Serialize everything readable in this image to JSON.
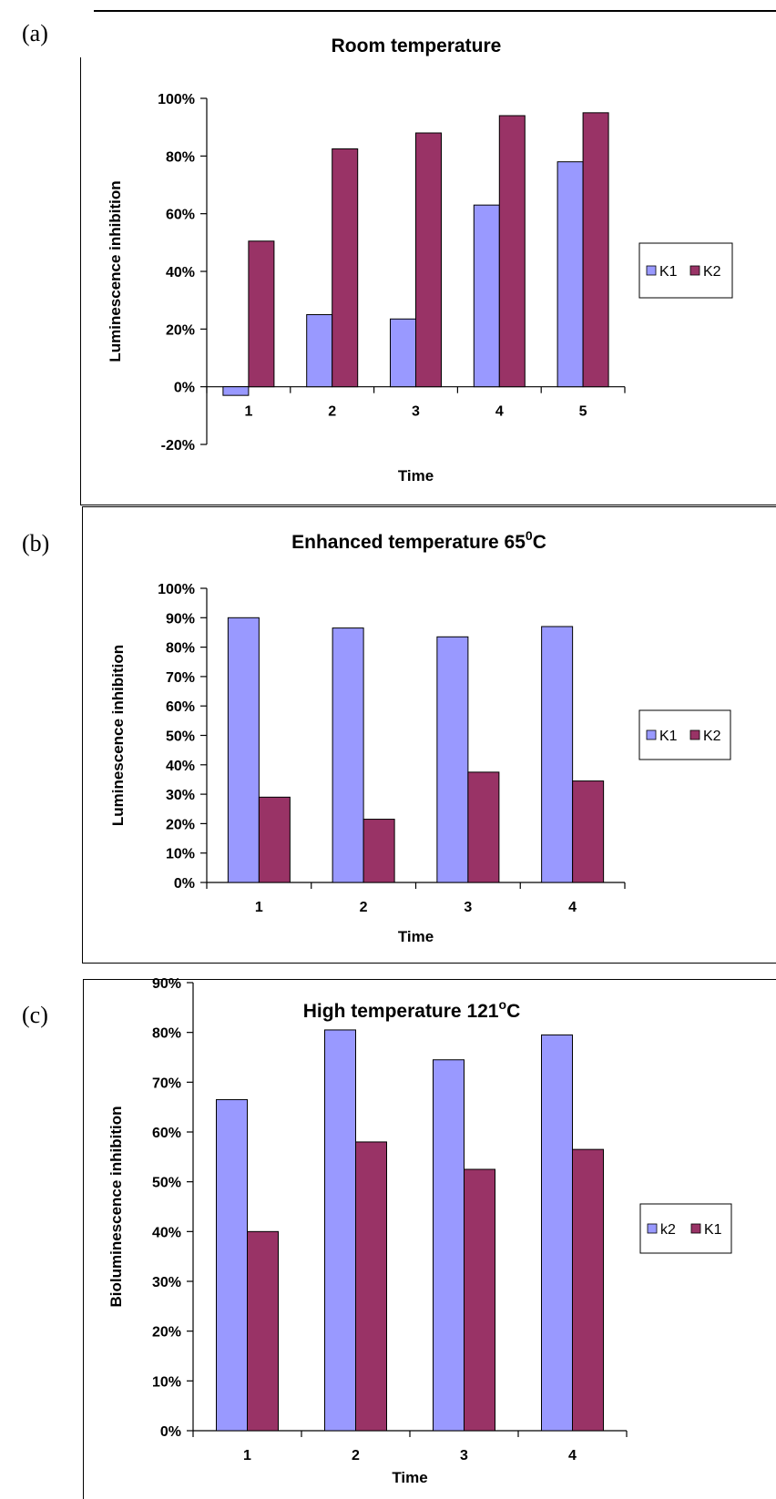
{
  "charts": [
    {
      "panel_label": "(a)",
      "title": "Room temperature",
      "title_sup": "",
      "title_suffix": "",
      "xlabel": "Time",
      "ylabel": "Luminescence inhibition",
      "tick_labels": [
        "-20%",
        "0%",
        "20%",
        "40%",
        "60%",
        "80%",
        "100%"
      ]
    },
    {
      "panel_label": "(b)",
      "title": "Enhanced temperature 65",
      "title_sup": "0",
      "title_suffix": "C",
      "xlabel": "Time",
      "ylabel": "Luminescence inhibition",
      "tick_labels": [
        "0%",
        "10%",
        "20%",
        "30%",
        "40%",
        "50%",
        "60%",
        "70%",
        "80%",
        "90%",
        "100%"
      ]
    },
    {
      "panel_label": "(c)",
      "title": "High temperature 121",
      "title_sup": "o",
      "title_suffix": "C",
      "xlabel": "Time",
      "ylabel": "Bioluminescence inhibition",
      "tick_labels": [
        "0%",
        "10%",
        "20%",
        "30%",
        "40%",
        "50%",
        "60%",
        "70%",
        "80%",
        "90%"
      ]
    }
  ],
  "chart_data": [
    {
      "type": "bar",
      "title": "Room temperature",
      "xlabel": "Time",
      "ylabel": "Luminescence inhibition",
      "categories": [
        "1",
        "2",
        "3",
        "4",
        "5"
      ],
      "series": [
        {
          "name": "K1",
          "color": "#9999FF",
          "values": [
            -3,
            25,
            23.5,
            63,
            78
          ]
        },
        {
          "name": "K2",
          "color": "#993366",
          "values": [
            50.5,
            82.5,
            88,
            94,
            95
          ]
        }
      ],
      "ylim": [
        -20,
        100
      ],
      "ytick_step": 20,
      "unit": "%",
      "grid": false,
      "legend_position": "right"
    },
    {
      "type": "bar",
      "title": "Enhanced temperature 65°C",
      "xlabel": "Time",
      "ylabel": "Luminescence inhibition",
      "categories": [
        "1",
        "2",
        "3",
        "4"
      ],
      "series": [
        {
          "name": "K1",
          "color": "#9999FF",
          "values": [
            90,
            86.5,
            83.5,
            87
          ]
        },
        {
          "name": "K2",
          "color": "#993366",
          "values": [
            29,
            21.5,
            37.5,
            34.5
          ]
        }
      ],
      "ylim": [
        0,
        100
      ],
      "ytick_step": 10,
      "unit": "%",
      "grid": false,
      "legend_position": "right"
    },
    {
      "type": "bar",
      "title": "High temperature 121°C",
      "xlabel": "Time",
      "ylabel": "Bioluminescence inhibition",
      "categories": [
        "1",
        "2",
        "3",
        "4"
      ],
      "series": [
        {
          "name": "k2",
          "color": "#9999FF",
          "values": [
            66.5,
            80.5,
            74.5,
            79.5
          ]
        },
        {
          "name": "K1",
          "color": "#993366",
          "values": [
            40,
            58,
            52.5,
            56.5
          ]
        }
      ],
      "ylim": [
        0,
        90
      ],
      "ytick_step": 10,
      "unit": "%",
      "grid": false,
      "legend_position": "right"
    }
  ]
}
